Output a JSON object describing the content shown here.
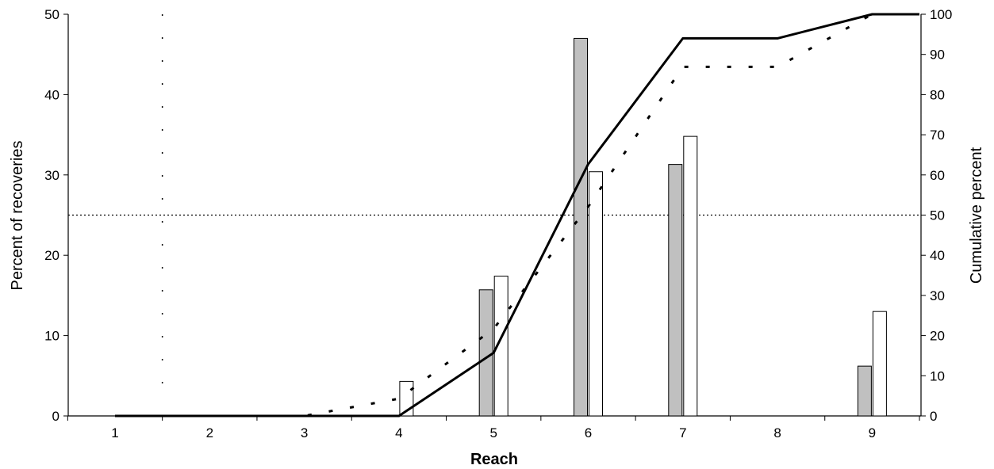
{
  "chart_data": {
    "type": "bar",
    "xlabel": "Reach",
    "ylabel": "Percent of recoveries",
    "y2label": "Cumulative percent",
    "categories": [
      "1",
      "2",
      "3",
      "4",
      "5",
      "6",
      "7",
      "8",
      "9"
    ],
    "ylim": [
      0,
      50
    ],
    "y2lim": [
      0,
      100
    ],
    "yticks": [
      "0",
      "10",
      "20",
      "30",
      "40",
      "50"
    ],
    "y2ticks": [
      "0",
      "10",
      "20",
      "30",
      "40",
      "50",
      "60",
      "70",
      "80",
      "90",
      "100"
    ],
    "series": [
      {
        "kind": "bar",
        "axis": "left",
        "color": "#c0c0c0",
        "values": [
          0,
          0,
          0,
          0,
          15.7,
          47.0,
          31.3,
          0,
          6.2
        ]
      },
      {
        "kind": "bar",
        "axis": "left",
        "color": "#ffffff",
        "values": [
          0,
          0,
          0,
          4.3,
          17.4,
          30.4,
          34.8,
          0,
          13.0
        ]
      },
      {
        "kind": "line",
        "axis": "right",
        "style": "solid",
        "x": [
          1,
          4,
          5,
          6,
          7,
          8,
          9,
          9.5
        ],
        "values": [
          0,
          0,
          15.7,
          62.7,
          94.0,
          94.0,
          100,
          100
        ]
      },
      {
        "kind": "line",
        "axis": "right",
        "style": "dashed",
        "x": [
          1,
          3,
          4,
          5,
          6,
          7,
          8,
          9,
          9.5
        ],
        "values": [
          0,
          0,
          4.3,
          21.7,
          52.1,
          86.9,
          86.9,
          100,
          100
        ]
      }
    ],
    "reference_lines": [
      {
        "orientation": "horizontal",
        "axis": "right",
        "value": 50,
        "style": "dotted"
      },
      {
        "orientation": "vertical",
        "x": 1.5,
        "style": "dotted"
      }
    ],
    "grid": false,
    "legend": "none"
  }
}
